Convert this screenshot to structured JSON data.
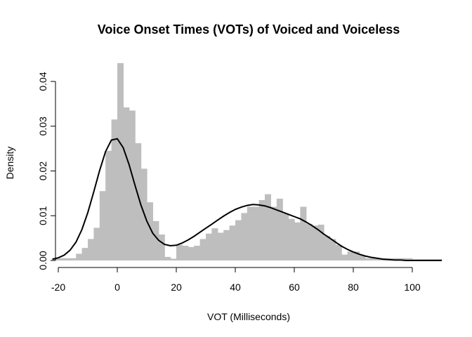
{
  "chart_data": {
    "type": "bar",
    "title": "Voice Onset Times (VOTs) of Voiced and Voiceless",
    "xlabel": "VOT (Milliseconds)",
    "ylabel": "Density",
    "xlim": [
      -20,
      110
    ],
    "ylim": [
      0,
      0.04
    ],
    "x_ticks": [
      "-20",
      "0",
      "20",
      "40",
      "60",
      "80",
      "100"
    ],
    "y_ticks": [
      "0.00",
      "0.01",
      "0.02",
      "0.03",
      "0.04"
    ],
    "colors": {
      "bars": "#bebebe",
      "curve": "#000000"
    },
    "histogram": {
      "bin_width": 2,
      "bins_start": [
        -22,
        -20,
        -18,
        -16,
        -14,
        -12,
        -10,
        -8,
        -6,
        -4,
        -2,
        0,
        2,
        4,
        6,
        8,
        10,
        12,
        14,
        16,
        18,
        20,
        22,
        24,
        26,
        28,
        30,
        32,
        34,
        36,
        38,
        40,
        42,
        44,
        46,
        48,
        50,
        52,
        54,
        56,
        58,
        60,
        62,
        64,
        66,
        68,
        70,
        72,
        74,
        76,
        78,
        80,
        82,
        84,
        86,
        88,
        90,
        92,
        94,
        96,
        98,
        100,
        102,
        104,
        106,
        108
      ],
      "density": [
        0.0005,
        0.0005,
        0.0005,
        0.0005,
        0.0015,
        0.0028,
        0.0048,
        0.0073,
        0.0155,
        0.0245,
        0.0315,
        0.0441,
        0.0342,
        0.0335,
        0.0262,
        0.0205,
        0.013,
        0.0088,
        0.0058,
        0.0008,
        0.0004,
        0.0035,
        0.0033,
        0.003,
        0.0033,
        0.0048,
        0.006,
        0.0072,
        0.0062,
        0.0068,
        0.0078,
        0.009,
        0.0106,
        0.012,
        0.012,
        0.0135,
        0.0148,
        0.012,
        0.0138,
        0.0105,
        0.0093,
        0.0085,
        0.012,
        0.0082,
        0.0078,
        0.008,
        0.0055,
        0.0048,
        0.0035,
        0.0013,
        0.002,
        0.002,
        0.0012,
        0.0005,
        0.0005,
        0.0005,
        0.0005,
        0.0005,
        0.0005,
        0.0005,
        0.0005,
        0.0003,
        0.0003,
        0.0003,
        0.0003,
        0.0003
      ]
    },
    "density_curve": {
      "x": [
        -22,
        -20,
        -18,
        -16,
        -14,
        -12,
        -10,
        -8,
        -6,
        -4,
        -2,
        0,
        2,
        4,
        6,
        8,
        10,
        12,
        14,
        16,
        18,
        20,
        22,
        24,
        26,
        28,
        30,
        32,
        34,
        36,
        38,
        40,
        42,
        44,
        46,
        48,
        50,
        52,
        54,
        56,
        58,
        60,
        62,
        64,
        66,
        68,
        70,
        72,
        74,
        76,
        78,
        80,
        82,
        84,
        86,
        88,
        90,
        92,
        94,
        96,
        98,
        100,
        102,
        104,
        106,
        108,
        110
      ],
      "y": [
        0.0003,
        0.0006,
        0.0012,
        0.0023,
        0.0041,
        0.0069,
        0.0107,
        0.0153,
        0.0201,
        0.0243,
        0.0269,
        0.0272,
        0.0252,
        0.0214,
        0.0168,
        0.0124,
        0.0088,
        0.0061,
        0.0045,
        0.0036,
        0.0033,
        0.0034,
        0.0039,
        0.0046,
        0.0054,
        0.0063,
        0.0072,
        0.0081,
        0.009,
        0.0099,
        0.0107,
        0.0114,
        0.0119,
        0.0123,
        0.0125,
        0.0124,
        0.0122,
        0.0118,
        0.0113,
        0.0108,
        0.0103,
        0.0098,
        0.0093,
        0.0086,
        0.0078,
        0.0069,
        0.0059,
        0.005,
        0.0041,
        0.0032,
        0.0025,
        0.0019,
        0.0014,
        0.001,
        0.0007,
        0.0005,
        0.0003,
        0.0002,
        0.0001,
        0.0001,
        0.0,
        0.0,
        0.0,
        0.0,
        0.0,
        0.0,
        0.0
      ]
    },
    "legend": "none",
    "grid": false
  }
}
